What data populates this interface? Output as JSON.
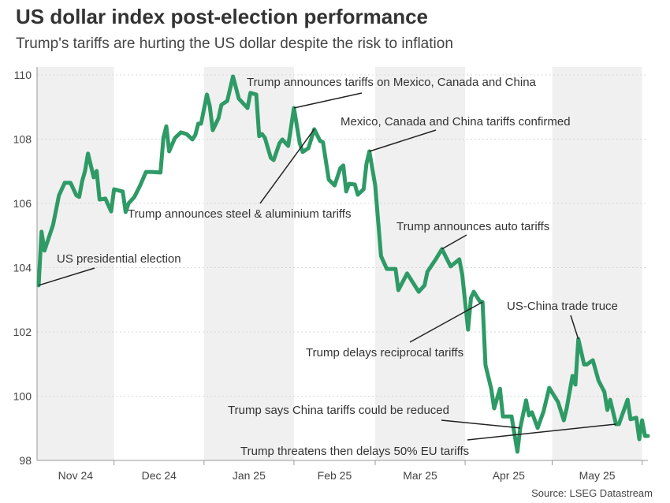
{
  "chart_data": {
    "type": "line",
    "title": "US dollar index post-election performance",
    "subtitle": "Trump's tariffs are hurting the US dollar despite the risk to inflation",
    "source": "Source: LSEG Datastream",
    "xlabel": "",
    "ylabel": "",
    "xlim": [
      "2024-11-05",
      "2025-06-03"
    ],
    "ylim": [
      98,
      110
    ],
    "y_ticks": [
      98,
      100,
      102,
      104,
      106,
      108,
      110
    ],
    "x_tick_labels": [
      "Nov 24",
      "Dec 24",
      "Jan 25",
      "Feb 25",
      "Mar 25",
      "Apr 25",
      "May 25"
    ],
    "grid": "horizontal dotted",
    "shaded_months": [
      "Nov 24",
      "Jan 25",
      "Mar 25",
      "May 25"
    ],
    "line_color": "#2e9a66",
    "series": [
      {
        "x": [
          "2024-11-05",
          "2024-11-06",
          "2024-11-07",
          "2024-11-10",
          "2024-11-12",
          "2024-11-14",
          "2024-11-16",
          "2024-11-18",
          "2024-11-19",
          "2024-11-20",
          "2024-11-21",
          "2024-11-22",
          "2024-11-24",
          "2024-11-25",
          "2024-11-26",
          "2024-11-28",
          "2024-11-30",
          "2024-12-01",
          "2024-12-04",
          "2024-12-05",
          "2024-12-06",
          "2024-12-08",
          "2024-12-10",
          "2024-12-12",
          "2024-12-14",
          "2024-12-17",
          "2024-12-18",
          "2024-12-19",
          "2024-12-20",
          "2024-12-22",
          "2024-12-24",
          "2024-12-26",
          "2024-12-28",
          "2024-12-29",
          "2024-12-30",
          "2024-12-31",
          "2025-01-02",
          "2025-01-03",
          "2025-01-04",
          "2025-01-06",
          "2025-01-07",
          "2025-01-09",
          "2025-01-11",
          "2025-01-13",
          "2025-01-16",
          "2025-01-17",
          "2025-01-19",
          "2025-01-20",
          "2025-01-21",
          "2025-01-22",
          "2025-01-24",
          "2025-01-25",
          "2025-01-27",
          "2025-01-28",
          "2025-01-30",
          "2025-02-01",
          "2025-02-03",
          "2025-02-04",
          "2025-02-06",
          "2025-02-08",
          "2025-02-10",
          "2025-02-11",
          "2025-02-13",
          "2025-02-15",
          "2025-02-17",
          "2025-02-18",
          "2025-02-19",
          "2025-02-20",
          "2025-02-22",
          "2025-02-23",
          "2025-02-25",
          "2025-02-26",
          "2025-02-27",
          "2025-03-01",
          "2025-03-03",
          "2025-03-05",
          "2025-03-08",
          "2025-03-09",
          "2025-03-12",
          "2025-03-16",
          "2025-03-18",
          "2025-03-19",
          "2025-03-22",
          "2025-03-24",
          "2025-03-27",
          "2025-03-30",
          "2025-03-31",
          "2025-04-02",
          "2025-04-03",
          "2025-04-04",
          "2025-04-06",
          "2025-04-07",
          "2025-04-08",
          "2025-04-10",
          "2025-04-11",
          "2025-04-13",
          "2025-04-14",
          "2025-04-17",
          "2025-04-19",
          "2025-04-20",
          "2025-04-22",
          "2025-04-23",
          "2025-04-24",
          "2025-04-26",
          "2025-04-28",
          "2025-04-30",
          "2025-05-03",
          "2025-05-05",
          "2025-05-06",
          "2025-05-08",
          "2025-05-09",
          "2025-05-10",
          "2025-05-12",
          "2025-05-13",
          "2025-05-15",
          "2025-05-17",
          "2025-05-19",
          "2025-05-20",
          "2025-05-21",
          "2025-05-23",
          "2025-05-24",
          "2025-05-27",
          "2025-05-28",
          "2025-05-30",
          "2025-05-31",
          "2025-06-01",
          "2025-06-02",
          "2025-06-03"
        ],
        "y": [
          103.45,
          105.12,
          104.53,
          105.34,
          106.25,
          106.64,
          106.64,
          106.25,
          106.2,
          106.69,
          107.01,
          107.55,
          106.81,
          107.01,
          106.12,
          106.15,
          105.75,
          106.44,
          106.37,
          105.73,
          106.0,
          106.2,
          106.56,
          106.98,
          106.98,
          106.96,
          108.04,
          108.4,
          107.62,
          108.04,
          108.21,
          108.16,
          107.99,
          108.13,
          108.48,
          108.48,
          109.39,
          109.02,
          108.28,
          108.65,
          109.07,
          109.19,
          109.95,
          109.26,
          108.97,
          109.44,
          109.39,
          108.09,
          108.16,
          108.04,
          107.42,
          107.35,
          107.87,
          107.99,
          107.79,
          108.97,
          107.87,
          107.6,
          107.72,
          108.31,
          107.94,
          107.91,
          106.74,
          106.56,
          107.1,
          107.18,
          106.37,
          106.61,
          106.59,
          106.27,
          106.44,
          107.23,
          107.62,
          106.56,
          104.36,
          103.96,
          103.96,
          103.3,
          103.82,
          103.25,
          103.45,
          103.87,
          104.28,
          104.58,
          104.04,
          104.26,
          103.79,
          102.07,
          103.06,
          103.25,
          102.96,
          102.93,
          100.97,
          100.23,
          99.62,
          100.23,
          99.37,
          99.37,
          98.27,
          99.01,
          99.87,
          99.4,
          99.5,
          99.01,
          99.52,
          100.26,
          99.82,
          99.25,
          99.62,
          100.63,
          100.36,
          101.78,
          100.99,
          100.99,
          101.12,
          100.48,
          100.13,
          99.57,
          99.89,
          99.13,
          99.13,
          99.89,
          99.28,
          99.33,
          98.66,
          99.25,
          98.76,
          98.76
        ]
      }
    ],
    "annotations": [
      {
        "text": "US presidential election",
        "x": "2024-11-05",
        "y": 103.45
      },
      {
        "text": "Trump announces steel & aluminium tariffs",
        "x": "2025-02-08",
        "y": 108.31
      },
      {
        "text": "Trump announces tariffs on Mexico, Canada and China",
        "x": "2025-02-01",
        "y": 108.97
      },
      {
        "text": "Mexico, Canada and China tariffs confirmed",
        "x": "2025-02-27",
        "y": 107.62
      },
      {
        "text": "Trump announces auto tariffs",
        "x": "2025-03-24",
        "y": 104.58
      },
      {
        "text": "Trump delays reciprocal tariffs",
        "x": "2025-04-07",
        "y": 102.93
      },
      {
        "text": "US-China trade truce",
        "x": "2025-05-10",
        "y": 101.78
      },
      {
        "text": "Trump says China tariffs could be reduced",
        "x": "2025-04-20",
        "y": 99.01
      },
      {
        "text": "Trump threatens then delays 50% EU tariffs",
        "x": "2025-05-23",
        "y": 99.13
      }
    ]
  }
}
